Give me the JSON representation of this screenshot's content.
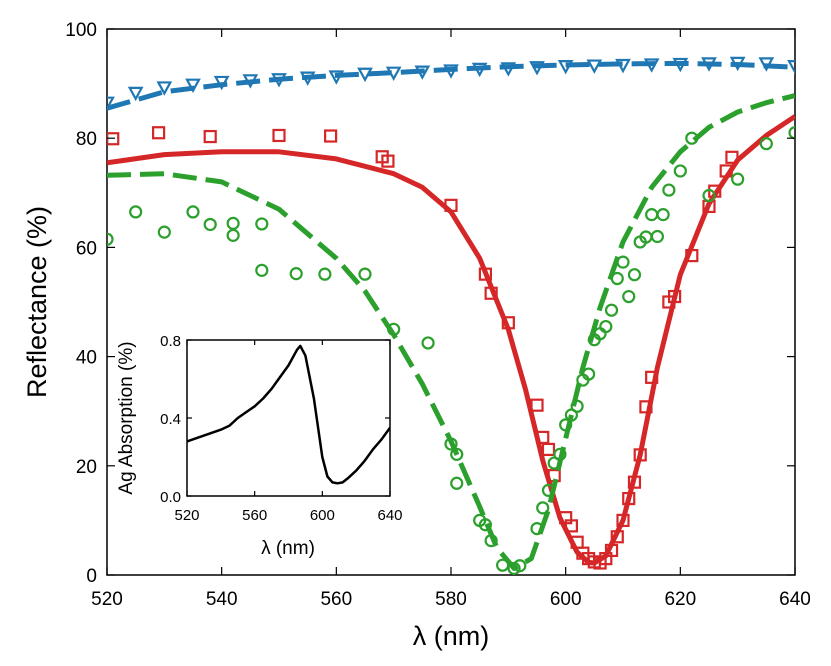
{
  "chart_data": [
    {
      "type": "line",
      "title": "",
      "xlabel": "λ (nm)",
      "ylabel": "Reflectance (%)",
      "xlim": [
        520,
        640
      ],
      "ylim": [
        0,
        100
      ],
      "x_ticks": [
        "520",
        "540",
        "560",
        "580",
        "600",
        "620",
        "640"
      ],
      "y_ticks": [
        "0",
        "20",
        "40",
        "60",
        "80",
        "100"
      ],
      "grid": false,
      "legend": "none",
      "series": [
        {
          "style": "dashed-line",
          "color": "#1f77b4",
          "x": [
            520,
            530,
            540,
            550,
            560,
            570,
            580,
            590,
            600,
            610,
            620,
            630,
            640
          ],
          "y": [
            85.5,
            88.5,
            89.8,
            90.8,
            91.5,
            92.0,
            92.6,
            93.1,
            93.4,
            93.6,
            93.7,
            93.5,
            93.0
          ]
        },
        {
          "style": "markers-triangle-down",
          "color": "#1f77b4",
          "x": [
            520,
            525,
            530,
            535,
            540,
            545,
            550,
            555,
            560,
            565,
            570,
            575,
            580,
            585,
            590,
            595,
            600,
            605,
            610,
            615,
            620,
            625,
            630,
            635,
            640
          ],
          "y": [
            86.5,
            88.3,
            89.3,
            89.8,
            90.3,
            90.6,
            90.8,
            91.1,
            91.3,
            91.8,
            92.0,
            92.2,
            92.4,
            92.7,
            92.8,
            93.0,
            93.2,
            93.3,
            93.4,
            93.5,
            93.6,
            93.7,
            93.8,
            93.7,
            93.2
          ]
        },
        {
          "style": "solid-line",
          "color": "#d62728",
          "x": [
            520,
            530,
            540,
            550,
            560,
            570,
            575,
            580,
            585,
            590,
            593,
            596,
            599,
            602,
            604,
            605,
            607,
            610,
            613,
            616,
            620,
            625,
            630,
            635,
            640
          ],
          "y": [
            75.5,
            77.0,
            77.5,
            77.5,
            76.2,
            73.5,
            71.0,
            66.5,
            58.0,
            45.0,
            34.0,
            21.0,
            10.5,
            4.2,
            2.3,
            2.2,
            3.5,
            10.0,
            22.0,
            38.0,
            55.0,
            68.0,
            76.0,
            80.5,
            84.0
          ]
        },
        {
          "style": "markers-square",
          "color": "#d62728",
          "x": [
            521,
            529,
            538,
            550,
            559,
            568,
            569,
            580,
            586,
            587,
            590,
            595,
            596,
            597,
            598,
            600,
            601,
            602,
            603,
            604,
            605,
            606,
            607,
            608,
            609,
            610,
            611,
            612,
            613,
            614,
            615,
            618,
            619,
            622,
            625,
            626,
            628,
            629
          ],
          "y": [
            79.9,
            81.0,
            80.3,
            80.5,
            80.4,
            76.6,
            75.8,
            67.7,
            55.1,
            51.6,
            46.2,
            31.1,
            25.2,
            23.0,
            18.2,
            10.5,
            9.0,
            6.0,
            4.0,
            3.0,
            2.4,
            2.2,
            3.0,
            4.5,
            7.0,
            10.0,
            14.0,
            17.0,
            22.0,
            30.8,
            36.2,
            50.0,
            51.0,
            58.5,
            67.5,
            70.3,
            74.0,
            76.5
          ]
        },
        {
          "style": "dashed-line",
          "color": "#2ca02c",
          "x": [
            520,
            530,
            540,
            550,
            560,
            565,
            570,
            575,
            580,
            585,
            588,
            591,
            594,
            597,
            600,
            603,
            606,
            610,
            615,
            620,
            625,
            630,
            635,
            640
          ],
          "y": [
            73.2,
            73.5,
            72.0,
            67.0,
            58.0,
            52.0,
            44.0,
            35.0,
            24.5,
            12.5,
            5.0,
            1.2,
            3.0,
            12.0,
            25.0,
            38.0,
            49.0,
            61.0,
            71.0,
            77.5,
            82.0,
            84.8,
            86.5,
            87.8
          ]
        },
        {
          "style": "markers-circle",
          "color": "#2ca02c",
          "x": [
            520,
            525,
            530,
            535,
            538,
            542,
            542,
            547,
            547,
            553,
            558,
            565,
            570,
            576,
            580,
            581,
            581,
            585,
            586,
            587,
            589,
            591,
            592,
            595,
            596,
            597,
            598,
            599,
            600,
            601,
            602,
            603,
            604,
            605,
            606,
            607,
            608,
            609,
            610,
            611,
            612,
            613,
            614,
            615,
            616,
            617,
            618,
            620,
            622,
            625,
            630,
            635,
            640
          ],
          "y": [
            61.5,
            66.5,
            62.8,
            66.5,
            64.2,
            64.4,
            62.2,
            64.3,
            55.8,
            55.2,
            55.1,
            55.1,
            45.0,
            42.5,
            24.0,
            22.1,
            16.8,
            10.0,
            9.2,
            6.3,
            1.8,
            1.2,
            1.7,
            8.5,
            12.3,
            15.5,
            20.5,
            22.1,
            27.5,
            29.3,
            30.9,
            35.7,
            36.8,
            43.1,
            44.2,
            45.5,
            48.5,
            54.3,
            57.3,
            51.0,
            55.0,
            61.0,
            61.9,
            66.0,
            62.0,
            66.0,
            70.5,
            74.0,
            80.0,
            69.5,
            72.5,
            79.0,
            81.0
          ]
        }
      ]
    },
    {
      "type": "line",
      "title": "",
      "xlabel": "λ (nm)",
      "ylabel": "Ag Absorption (%)",
      "xlim": [
        520,
        640
      ],
      "ylim": [
        0,
        0.8
      ],
      "x_ticks": [
        "520",
        "560",
        "600",
        "640"
      ],
      "y_ticks": [
        "0.0",
        "0.4",
        "0.8"
      ],
      "series": [
        {
          "style": "solid-line",
          "color": "#000000",
          "x": [
            520,
            530,
            540,
            545,
            550,
            555,
            560,
            565,
            570,
            575,
            580,
            585,
            587,
            590,
            595,
            600,
            603,
            606,
            609,
            612,
            615,
            620,
            625,
            630,
            635,
            640
          ],
          "y": [
            0.28,
            0.31,
            0.34,
            0.36,
            0.4,
            0.43,
            0.46,
            0.5,
            0.55,
            0.61,
            0.67,
            0.75,
            0.77,
            0.72,
            0.5,
            0.2,
            0.1,
            0.07,
            0.065,
            0.07,
            0.09,
            0.13,
            0.18,
            0.24,
            0.29,
            0.35
          ]
        }
      ]
    }
  ]
}
